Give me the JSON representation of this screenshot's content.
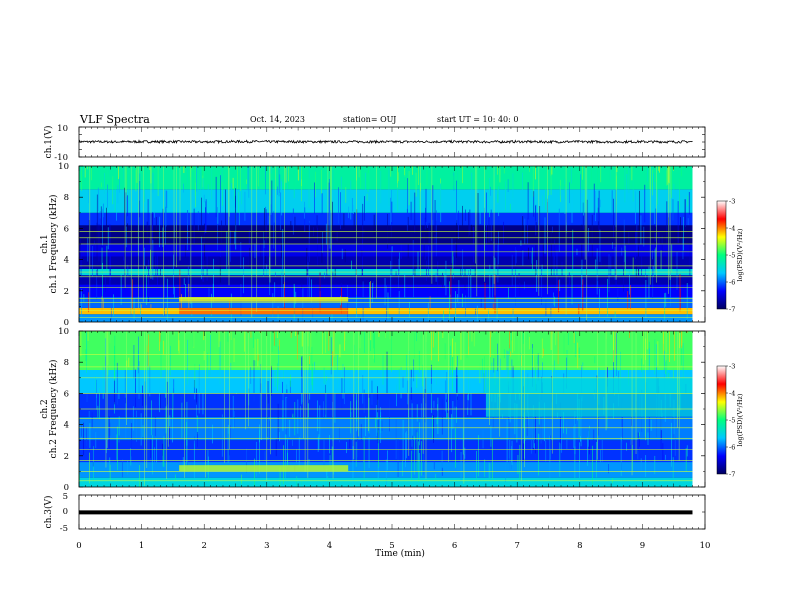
{
  "header": {
    "title": "VLF Spectra",
    "date": "Oct. 14, 2023",
    "station": "station= OUJ",
    "start": "start UT =  10: 40: 0"
  },
  "colors": {
    "colormap": [
      "#000060",
      "#0000ff",
      "#00c8ff",
      "#00ff80",
      "#ffff00",
      "#ff0000",
      "#ffffff"
    ],
    "spectral_bg": "#00005a",
    "trace": "#000000"
  },
  "chart_data": [
    {
      "type": "line",
      "name": "waveform-ch1",
      "ylabel": "ch.1(V)",
      "ylim": [
        -10,
        10
      ],
      "yticks": [
        "10",
        "-10"
      ],
      "x": [
        0,
        0.5,
        1,
        1.5,
        2,
        2.5,
        3,
        3.5,
        4,
        4.5,
        5,
        5.5,
        6,
        6.5,
        7,
        7.5,
        8,
        8.5,
        9,
        9.5,
        9.8
      ],
      "y": [
        0.2,
        0.1,
        0.2,
        0.2,
        0.1,
        0.3,
        0.2,
        0.2,
        0.1,
        0.2,
        0.1,
        0.2,
        0.2,
        0.1,
        0.2,
        0.1,
        0.2,
        0.1,
        0.2,
        0.1,
        0.2
      ]
    },
    {
      "type": "heatmap",
      "name": "spectrogram-ch1",
      "ylabel": "ch.1 Frequency (kHz)",
      "ylim": [
        0,
        10
      ],
      "yticks": [
        "0",
        "2",
        "4",
        "6",
        "8",
        "10"
      ],
      "xlim": [
        0,
        10
      ],
      "data_end_min": 9.8,
      "colorbar": {
        "label": "log(PSD)(V²/Hz)",
        "range": [
          -7,
          -3
        ],
        "ticks": [
          "-3",
          "-4",
          "-5",
          "-6",
          "-7"
        ]
      },
      "levels": [
        {
          "f0": 0.0,
          "f1": 0.5,
          "v": -5.6
        },
        {
          "f0": 0.5,
          "f1": 0.9,
          "v": -3.6
        },
        {
          "f0": 0.9,
          "f1": 1.6,
          "v": -5.8
        },
        {
          "f0": 1.6,
          "f1": 2.4,
          "v": -6.2
        },
        {
          "f0": 2.4,
          "f1": 3.0,
          "v": -6.6
        },
        {
          "f0": 3.0,
          "f1": 3.4,
          "v": -5.2
        },
        {
          "f0": 3.4,
          "f1": 4.2,
          "v": -6.6
        },
        {
          "f0": 4.2,
          "f1": 5.0,
          "v": -6.3
        },
        {
          "f0": 5.0,
          "f1": 6.2,
          "v": -6.8
        },
        {
          "f0": 6.2,
          "f1": 7.0,
          "v": -6.0
        },
        {
          "f0": 7.0,
          "f1": 8.5,
          "v": -5.3
        },
        {
          "f0": 8.5,
          "f1": 10.0,
          "v": -4.8
        }
      ],
      "lines_khz": [
        0.3,
        0.75,
        1.25,
        1.5,
        2.2,
        2.9,
        3.2,
        3.6,
        4.5,
        5.0,
        5.4,
        5.8
      ],
      "events": [
        {
          "t0": 1.6,
          "t1": 4.3,
          "f0": 1.3,
          "f1": 1.6,
          "v": -3.8
        },
        {
          "t0": 1.6,
          "t1": 4.3,
          "f0": 0.5,
          "f1": 0.9,
          "v": -3.3
        }
      ]
    },
    {
      "type": "heatmap",
      "name": "spectrogram-ch2",
      "ylabel": "ch.2 Frequency (kHz)",
      "ylim": [
        0,
        10
      ],
      "yticks": [
        "0",
        "2",
        "4",
        "6",
        "8",
        "10"
      ],
      "xlim": [
        0,
        10
      ],
      "data_end_min": 9.8,
      "colorbar": {
        "label": "log(PSD)(V²/Hz)",
        "range": [
          -7,
          -3
        ],
        "ticks": [
          "-3",
          "-4",
          "-5",
          "-6",
          "-7"
        ]
      },
      "levels": [
        {
          "f0": 0.0,
          "f1": 0.6,
          "v": -5.2
        },
        {
          "f0": 0.6,
          "f1": 1.6,
          "v": -5.6
        },
        {
          "f0": 1.6,
          "f1": 3.0,
          "v": -6.0
        },
        {
          "f0": 3.0,
          "f1": 4.5,
          "v": -5.7
        },
        {
          "f0": 4.5,
          "f1": 6.0,
          "v": -6.0
        },
        {
          "f0": 6.0,
          "f1": 7.5,
          "v": -5.4
        },
        {
          "f0": 7.5,
          "f1": 10.0,
          "v": -4.4
        }
      ],
      "lines_khz": [
        0.4,
        1.0,
        1.7,
        2.4,
        3.1,
        3.8,
        4.4,
        5.0,
        6.0,
        7.0,
        7.7,
        8.5
      ],
      "events": [
        {
          "t0": 1.6,
          "t1": 4.3,
          "f0": 1.0,
          "f1": 1.4,
          "v": -4.0
        },
        {
          "t0": 6.5,
          "t1": 9.8,
          "f0": 4.5,
          "f1": 7.0,
          "v": -5.2
        }
      ]
    },
    {
      "type": "line",
      "name": "waveform-ch3",
      "ylabel": "ch.3(V)",
      "ylim": [
        -5,
        5
      ],
      "yticks": [
        "5",
        "0",
        "-5"
      ],
      "xlabel": "Time (min)",
      "xlim": [
        0,
        10
      ],
      "xticks": [
        "0",
        "1",
        "2",
        "3",
        "4",
        "5",
        "6",
        "7",
        "8",
        "9",
        "10"
      ],
      "x": [
        0,
        9.8
      ],
      "y": [
        -0.1,
        -0.1
      ]
    }
  ]
}
